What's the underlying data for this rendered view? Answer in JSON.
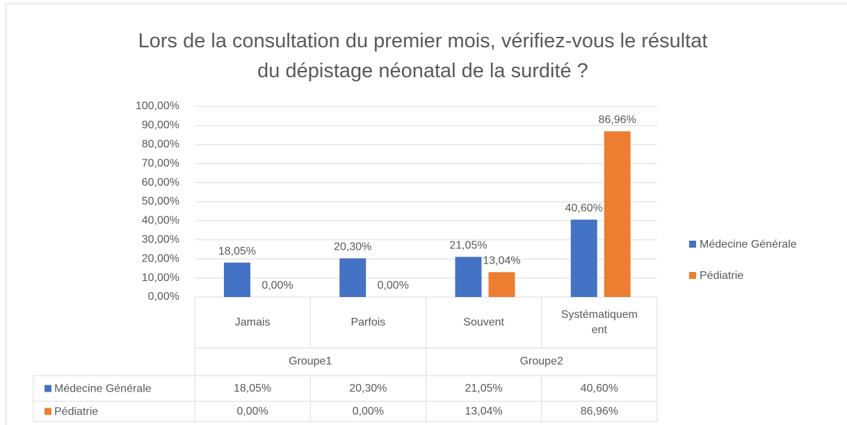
{
  "chart_data": {
    "type": "bar",
    "title": "Lors de la consultation du premier mois, vérifiez-vous le résultat du dépistage néonatal de la surdité ?",
    "categories": [
      "Jamais",
      "Parfois",
      "Souvent",
      "Systématiquement"
    ],
    "groups": [
      {
        "name": "Groupe1",
        "span": 2
      },
      {
        "name": "Groupe2",
        "span": 2
      }
    ],
    "series": [
      {
        "name": "Médecine Générale",
        "color": "#4472c4",
        "values": [
          18.05,
          20.3,
          21.05,
          40.6
        ],
        "value_labels": [
          "18,05%",
          "20,30%",
          "21,05%",
          "40,60%"
        ]
      },
      {
        "name": "Pédiatrie",
        "color": "#ed7d31",
        "values": [
          0,
          0,
          13.04,
          86.96
        ],
        "value_labels": [
          "0,00%",
          "0,00%",
          "13,04%",
          "86,96%"
        ]
      }
    ],
    "ylim": [
      0,
      100
    ],
    "yticks": [
      {
        "value": 0,
        "label": "0,00%"
      },
      {
        "value": 10,
        "label": "10,00%"
      },
      {
        "value": 20,
        "label": "20,00%"
      },
      {
        "value": 30,
        "label": "30,00%"
      },
      {
        "value": 40,
        "label": "40,00%"
      },
      {
        "value": 50,
        "label": "50,00%"
      },
      {
        "value": 60,
        "label": "60,00%"
      },
      {
        "value": 70,
        "label": "70,00%"
      },
      {
        "value": 80,
        "label": "80,00%"
      },
      {
        "value": 90,
        "label": "90,00%"
      },
      {
        "value": 100,
        "label": "100,00%"
      }
    ],
    "grid": true,
    "legend": "right",
    "data_table": true
  }
}
